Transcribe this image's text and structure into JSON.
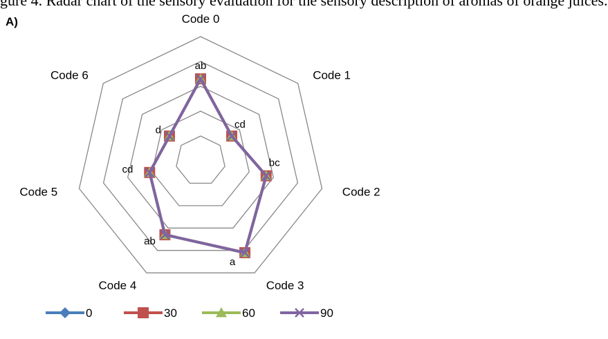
{
  "page": {
    "clipped_caption": "gure 4. Radar chart of the sensory evaluation for the sensory description of aromas of orange juices.",
    "panel_label": "A)"
  },
  "chart_data": {
    "type": "radar",
    "axes": [
      "Code 0",
      "Code 1",
      "Code 2",
      "Code 3",
      "Code 4",
      "Code 5",
      "Code 6"
    ],
    "rlim": [
      0,
      5
    ],
    "grid_levels": [
      1,
      2,
      3,
      4,
      5
    ],
    "grid": true,
    "legend_placement": "bottom",
    "series": [
      {
        "name": "0",
        "color": "#4A7EBB",
        "marker": "diamond",
        "values": [
          3.3,
          1.6,
          2.7,
          4.1,
          3.3,
          2.1,
          1.6
        ]
      },
      {
        "name": "30",
        "color": "#C0504D",
        "marker": "square",
        "values": [
          3.3,
          1.6,
          2.7,
          4.1,
          3.3,
          2.1,
          1.6
        ]
      },
      {
        "name": "60",
        "color": "#9BBB59",
        "marker": "triangle",
        "values": [
          3.3,
          1.6,
          2.7,
          4.1,
          3.3,
          2.1,
          1.6
        ]
      },
      {
        "name": "90",
        "color": "#8064A2",
        "marker": "x",
        "values": [
          3.3,
          1.6,
          2.7,
          4.1,
          3.3,
          2.1,
          1.6
        ]
      }
    ],
    "annotations": [
      "ab",
      "cd",
      "bc",
      "a",
      "ab",
      "cd",
      "d"
    ],
    "grid_color": "#888888"
  }
}
